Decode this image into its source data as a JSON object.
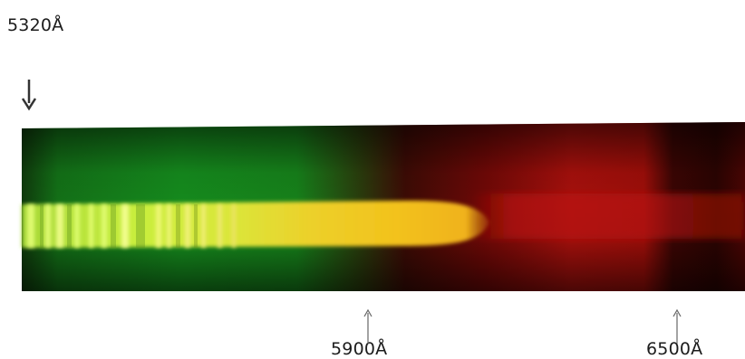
{
  "figure": {
    "subject": "spectrum-photograph",
    "colors": {
      "background": "#ffffff",
      "strip_dark": "#140a04",
      "green": "#1f8f22",
      "yellow_green": "#c9ef3c",
      "yellow": "#f2c21a",
      "red": "#b00f0c",
      "deep_red": "#4a0503"
    },
    "labels": {
      "left": "5320Å",
      "middle": "5900Å",
      "right": "6500Å"
    },
    "icons": {
      "left_marker": "arrow-down-icon",
      "middle_marker": "arrow-up-icon",
      "right_marker": "arrow-up-icon"
    }
  }
}
